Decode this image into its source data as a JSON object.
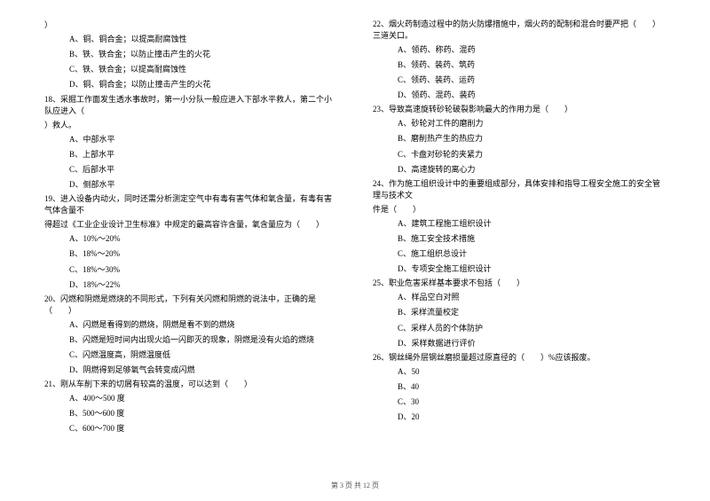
{
  "leftColumn": {
    "q17_continuation": "）",
    "q17_options": [
      "A、铜、铜合金；以提高耐腐蚀性",
      "B、铁、铁合金；以防止撞击产生的火花",
      "C、铁、铁合金；以提高耐腐蚀性",
      "D、铜、铜合金；以防止撞击产生的火花"
    ],
    "q18_text": "18、采掘工作面发生透水事故时，第一小分队一般应进入下部水平救人，第二个小队应进入（　　",
    "q18_text2": "）救人。",
    "q18_options": [
      "A、中部水平",
      "B、上部水平",
      "C、后部水平",
      "D、侧部水平"
    ],
    "q19_text": "19、进入设备内动火，同时还需分析测定空气中有毒有害气体和氧含量，有毒有害气体含量不",
    "q19_text2": "得超过《工业企业设计卫生标准》中规定的最高容许含量，氧含量应为（　　）",
    "q19_options": [
      "A、10%～20%",
      "B、18%～20%",
      "C、18%～30%",
      "D、18%～22%"
    ],
    "q20_text": "20、闪燃和阴燃是燃烧的不同形式，下列有关闪燃和阴燃的说法中，正确的是（　　）",
    "q20_options": [
      "A、闪燃是看得到的燃烧，阴燃是看不到的燃烧",
      "B、闪燃是短时间内出现火焰一闪即灭的现象，阴燃是没有火焰的燃烧",
      "C、闪燃温度高，阴燃温度低",
      "D、阴燃得到足够氧气会转变成闪燃"
    ],
    "q21_text": "21、刚从车削下来的切屑有较高的温度，可以达到（　　）",
    "q21_options": [
      "A、400～500 度",
      "B、500～600 度",
      "C、600～700 度"
    ]
  },
  "rightColumn": {
    "q22_text": "22、烟火药制造过程中的防火防爆措施中，烟火药的配制和混合时要严把（　　）三道关口。",
    "q22_options": [
      "A、领药、称药、混药",
      "B、领药、装药、筑药",
      "C、领药、装药、运药",
      "D、领药、混药、装药"
    ],
    "q23_text": "23、导致高速旋转砂轮破裂影响最大的作用力是（　　）",
    "q23_options": [
      "A、砂轮对工件的磨削力",
      "B、磨削热产生的热应力",
      "C、卡盘对砂轮的夹紧力",
      "D、高速旋转的离心力"
    ],
    "q24_text": "24、作为施工组织设计中的重要组成部分，具体安排和指导工程安全施工的安全管理与技术文",
    "q24_text2": "件是（　　）",
    "q24_options": [
      "A、建筑工程施工组织设计",
      "B、施工安全技术措施",
      "C、施工组织总设计",
      "D、专项安全施工组织设计"
    ],
    "q25_text": "25、职业危害采样基本要求不包括（　　）",
    "q25_options": [
      "A、样品空白对照",
      "B、采样流量校定",
      "C、采样人员的个体防护",
      "D、采样数据进行评价"
    ],
    "q26_text": "26、钢丝绳外层钢丝磨损量超过原直径的（　　）%应该报废。",
    "q26_options": [
      "A、50",
      "B、40",
      "C、30",
      "D、20"
    ]
  },
  "footer": "第 3 页 共 12 页"
}
